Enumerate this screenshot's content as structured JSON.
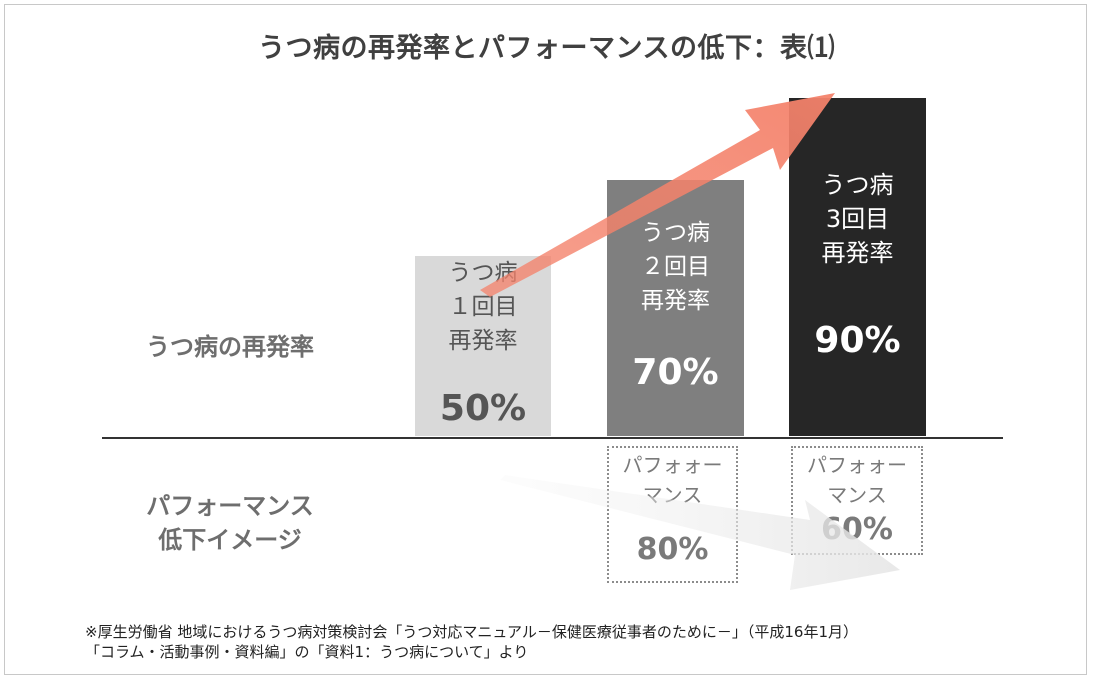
{
  "title": "うつ病の再発率とパフォーマンスの低下：表⑴",
  "row_labels": {
    "recurrence": "うつ病の再発率",
    "performance_line1": "パフォーマンス",
    "performance_line2": "低下イメージ"
  },
  "chart_data": {
    "type": "bar",
    "title": "うつ病の再発率とパフォーマンスの低下：表⑴",
    "categories": [
      "うつ病 1回目 再発率",
      "うつ病 2回目 再発率",
      "うつ病 3回目 再発率"
    ],
    "series": [
      {
        "name": "うつ病の再発率",
        "values": [
          50,
          70,
          90
        ]
      },
      {
        "name": "パフォーマンス低下イメージ",
        "values": [
          null,
          80,
          60
        ]
      }
    ],
    "colors": [
      "#d9d9d9",
      "#7f7f7f",
      "#262626"
    ],
    "arrow_color": "#f4826b"
  },
  "bars": [
    {
      "line1": "うつ病",
      "line2": "１回目",
      "line3": "再発率",
      "value": "50%"
    },
    {
      "line1": "うつ病",
      "line2": "２回目",
      "line3": "再発率",
      "value": "70%"
    },
    {
      "line1": "うつ病",
      "line2": "3回目",
      "line3": "再発率",
      "value": "90%"
    }
  ],
  "performance": [
    {
      "line1": "パフォォー",
      "line2": "マンス",
      "value": "80%"
    },
    {
      "line1": "パフォォー",
      "line2": "マンス",
      "value": "60%"
    }
  ],
  "footnote": {
    "line1": "※厚生労働省 地域におけるうつ病対策検討会「うつ対応マニュアル－保健医療従事者のために－」（平成16年1月）",
    "line2": "「コラム・活動事例・資料編」の「資料1：うつ病について」より"
  }
}
